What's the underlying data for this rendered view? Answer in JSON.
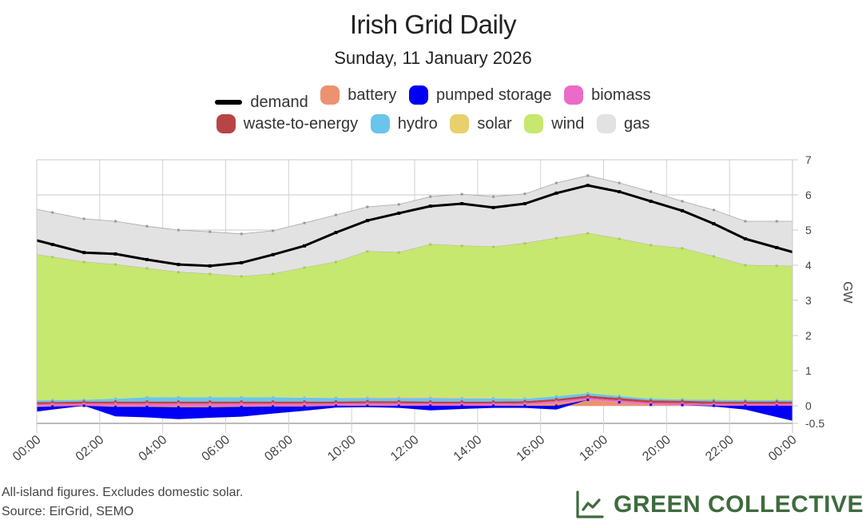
{
  "header": {
    "title": "Irish Grid Daily",
    "subtitle": "Sunday, 11 January 2026"
  },
  "legend": {
    "row1": [
      {
        "label": "demand",
        "color": "#000000",
        "kind": "line"
      },
      {
        "label": "battery",
        "color": "#ec9271",
        "kind": "area"
      },
      {
        "label": "pumped storage",
        "color": "#0000f5",
        "kind": "area"
      },
      {
        "label": "biomass",
        "color": "#ec6ac8",
        "kind": "area"
      }
    ],
    "row2": [
      {
        "label": "waste-to-energy",
        "color": "#b84545",
        "kind": "area"
      },
      {
        "label": "hydro",
        "color": "#6ac4ec",
        "kind": "area"
      },
      {
        "label": "solar",
        "color": "#e9d06e",
        "kind": "area"
      },
      {
        "label": "wind",
        "color": "#c6e86e",
        "kind": "area"
      },
      {
        "label": "gas",
        "color": "#e2e2e2",
        "kind": "area"
      }
    ]
  },
  "chart_data": {
    "type": "area",
    "stacked": true,
    "title": "Irish Grid Daily",
    "subtitle": "Sunday, 11 January 2026",
    "xlabel": "",
    "ylabel": "GW",
    "ylim": [
      -0.5,
      7
    ],
    "yticks": [
      "7",
      "6",
      "5",
      "4",
      "3",
      "2",
      "1",
      "0",
      "-0.5"
    ],
    "ytick_values": [
      7,
      6,
      5,
      4,
      3,
      2,
      1,
      0,
      -0.5
    ],
    "xticks": [
      "00:00",
      "02:00",
      "04:00",
      "06:00",
      "08:00",
      "10:00",
      "12:00",
      "14:00",
      "16:00",
      "18:00",
      "20:00",
      "22:00",
      "00:00"
    ],
    "xlim_hours": [
      0,
      24
    ],
    "grid": true,
    "legend_position": "top-center",
    "x_hours": [
      0.5,
      1.5,
      2.5,
      3.5,
      4.5,
      5.5,
      6.5,
      7.5,
      8.5,
      9.5,
      10.5,
      11.5,
      12.5,
      13.5,
      14.5,
      15.5,
      16.5,
      17.5,
      18.5,
      19.5,
      20.5,
      21.5,
      22.5,
      23.5
    ],
    "demand": [
      4.59,
      4.36,
      4.32,
      4.16,
      4.02,
      3.98,
      4.07,
      4.3,
      4.55,
      4.93,
      5.27,
      5.48,
      5.68,
      5.75,
      5.64,
      5.75,
      6.05,
      6.27,
      6.09,
      5.82,
      5.55,
      5.18,
      4.75,
      4.5
    ],
    "series": [
      {
        "name": "pumped storage",
        "values": [
          -0.09,
          0.0,
          -0.27,
          -0.3,
          -0.34,
          -0.3,
          -0.28,
          -0.2,
          -0.12,
          -0.05,
          -0.04,
          -0.06,
          -0.13,
          -0.09,
          -0.06,
          -0.06,
          -0.11,
          0.0,
          0.0,
          0.0,
          0.0,
          -0.02,
          -0.11,
          -0.32
        ]
      },
      {
        "name": "battery",
        "values": [
          -0.02,
          -0.03,
          -0.03,
          -0.03,
          -0.04,
          -0.04,
          -0.03,
          -0.02,
          -0.02,
          0.0,
          0.01,
          0.01,
          0.0,
          0.0,
          0.0,
          0.02,
          0.08,
          0.17,
          0.1,
          0.03,
          0.02,
          0.0,
          0.0,
          0.0
        ]
      },
      {
        "name": "biomass",
        "values": [
          0.05,
          0.06,
          0.06,
          0.06,
          0.06,
          0.06,
          0.06,
          0.06,
          0.06,
          0.06,
          0.06,
          0.06,
          0.06,
          0.06,
          0.06,
          0.05,
          0.05,
          0.05,
          0.05,
          0.05,
          0.05,
          0.05,
          0.05,
          0.05
        ]
      },
      {
        "name": "waste-to-energy",
        "values": [
          0.06,
          0.06,
          0.06,
          0.06,
          0.06,
          0.06,
          0.06,
          0.06,
          0.06,
          0.06,
          0.06,
          0.06,
          0.06,
          0.06,
          0.06,
          0.06,
          0.06,
          0.07,
          0.07,
          0.07,
          0.07,
          0.07,
          0.07,
          0.07
        ]
      },
      {
        "name": "hydro",
        "values": [
          0.05,
          0.05,
          0.08,
          0.12,
          0.12,
          0.12,
          0.12,
          0.12,
          0.11,
          0.1,
          0.09,
          0.09,
          0.1,
          0.09,
          0.09,
          0.07,
          0.08,
          0.07,
          0.06,
          0.05,
          0.04,
          0.05,
          0.04,
          0.04
        ]
      },
      {
        "name": "solar",
        "values": [
          0,
          0,
          0,
          0,
          0,
          0,
          0,
          0,
          0.01,
          0.02,
          0.04,
          0.05,
          0.05,
          0.04,
          0.02,
          0.01,
          0,
          0,
          0,
          0,
          0,
          0,
          0,
          0
        ]
      },
      {
        "name": "wind",
        "values": [
          4.07,
          3.92,
          3.82,
          3.67,
          3.56,
          3.51,
          3.44,
          3.51,
          3.69,
          3.85,
          4.13,
          4.09,
          4.32,
          4.3,
          4.29,
          4.41,
          4.5,
          4.55,
          4.47,
          4.37,
          4.3,
          4.08,
          3.84,
          3.82
        ]
      },
      {
        "name": "gas",
        "values": [
          1.27,
          1.23,
          1.23,
          1.2,
          1.2,
          1.2,
          1.21,
          1.23,
          1.27,
          1.34,
          1.27,
          1.37,
          1.36,
          1.47,
          1.43,
          1.41,
          1.57,
          1.64,
          1.59,
          1.52,
          1.34,
          1.32,
          1.25,
          1.27
        ]
      }
    ]
  },
  "footer": {
    "note": "All-island figures. Excludes domestic solar.",
    "source": "Source: EirGrid, SEMO",
    "brand": "GREEN COLLECTIVE"
  },
  "colors": {
    "brand": "#3e6b3e",
    "grid": "#c8c8c8",
    "axis_text": "#444444"
  }
}
